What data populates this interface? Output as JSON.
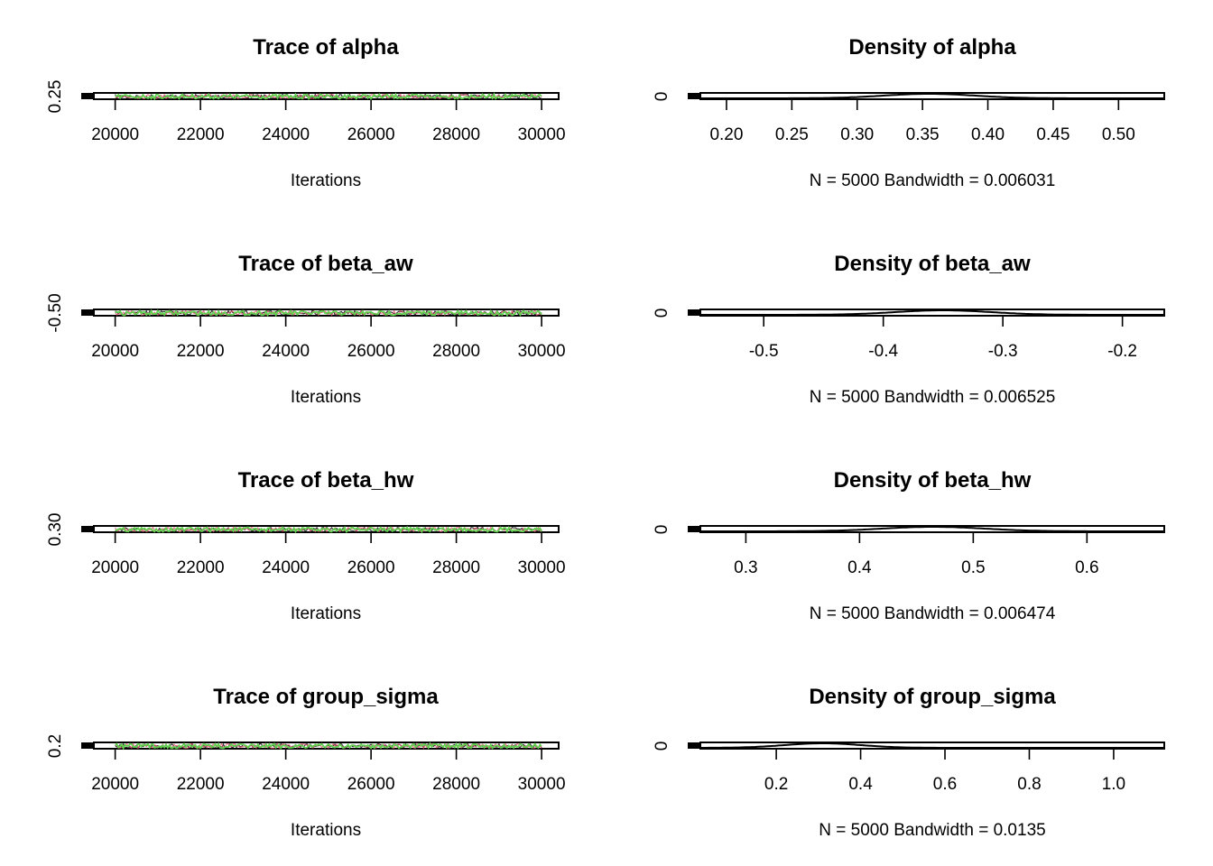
{
  "chart_data": [
    {
      "type": "line",
      "title": "Trace of alpha",
      "xlabel": "Iterations",
      "x_ticks": [
        "20000",
        "22000",
        "24000",
        "26000",
        "28000",
        "30000"
      ],
      "y_ticks": [
        "0.25"
      ],
      "xlim": [
        19500,
        30400
      ],
      "x_range": [
        20000,
        30000
      ],
      "series_colors": [
        "#000000",
        "#DF536B",
        "#61D04F"
      ]
    },
    {
      "type": "line",
      "title": "Density of alpha",
      "xlabel": "N = 5000   Bandwidth = 0.006031",
      "x_ticks": [
        "0.20",
        "0.25",
        "0.30",
        "0.35",
        "0.40",
        "0.45",
        "0.50"
      ],
      "y_ticks": [
        "0"
      ],
      "xlim": [
        0.18,
        0.535
      ],
      "peak": 0.355,
      "spread": 0.035
    },
    {
      "type": "line",
      "title": "Trace of beta_aw",
      "xlabel": "Iterations",
      "x_ticks": [
        "20000",
        "22000",
        "24000",
        "26000",
        "28000",
        "30000"
      ],
      "y_ticks": [
        "-0.50"
      ],
      "xlim": [
        19500,
        30400
      ],
      "x_range": [
        20000,
        30000
      ],
      "series_colors": [
        "#000000",
        "#DF536B",
        "#61D04F"
      ]
    },
    {
      "type": "line",
      "title": "Density of beta_aw",
      "xlabel": "N = 5000   Bandwidth = 0.006525",
      "x_ticks": [
        "-0.5",
        "-0.4",
        "-0.3",
        "-0.2"
      ],
      "y_ticks": [
        "0"
      ],
      "xlim": [
        -0.553,
        -0.165
      ],
      "peak": -0.35,
      "spread": 0.04
    },
    {
      "type": "line",
      "title": "Trace of beta_hw",
      "xlabel": "Iterations",
      "x_ticks": [
        "20000",
        "22000",
        "24000",
        "26000",
        "28000",
        "30000"
      ],
      "y_ticks": [
        "0.30"
      ],
      "xlim": [
        19500,
        30400
      ],
      "x_range": [
        20000,
        30000
      ],
      "series_colors": [
        "#000000",
        "#DF536B",
        "#61D04F"
      ]
    },
    {
      "type": "line",
      "title": "Density of beta_hw",
      "xlabel": "N = 5000   Bandwidth = 0.006474",
      "x_ticks": [
        "0.3",
        "0.4",
        "0.5",
        "0.6"
      ],
      "y_ticks": [
        "0"
      ],
      "xlim": [
        0.26,
        0.668
      ],
      "peak": 0.465,
      "spread": 0.045
    },
    {
      "type": "line",
      "title": "Trace of group_sigma",
      "xlabel": "Iterations",
      "x_ticks": [
        "20000",
        "22000",
        "24000",
        "26000",
        "28000",
        "30000"
      ],
      "y_ticks": [
        "0.2"
      ],
      "xlim": [
        19500,
        30400
      ],
      "x_range": [
        20000,
        30000
      ],
      "series_colors": [
        "#000000",
        "#DF536B",
        "#61D04F"
      ]
    },
    {
      "type": "line",
      "title": "Density of group_sigma",
      "xlabel": "N = 5000   Bandwidth = 0.0135",
      "x_ticks": [
        "0.2",
        "0.4",
        "0.6",
        "0.8",
        "1.0"
      ],
      "y_ticks": [
        "0"
      ],
      "xlim": [
        0.02,
        1.12
      ],
      "peak": 0.31,
      "spread": 0.09
    }
  ]
}
